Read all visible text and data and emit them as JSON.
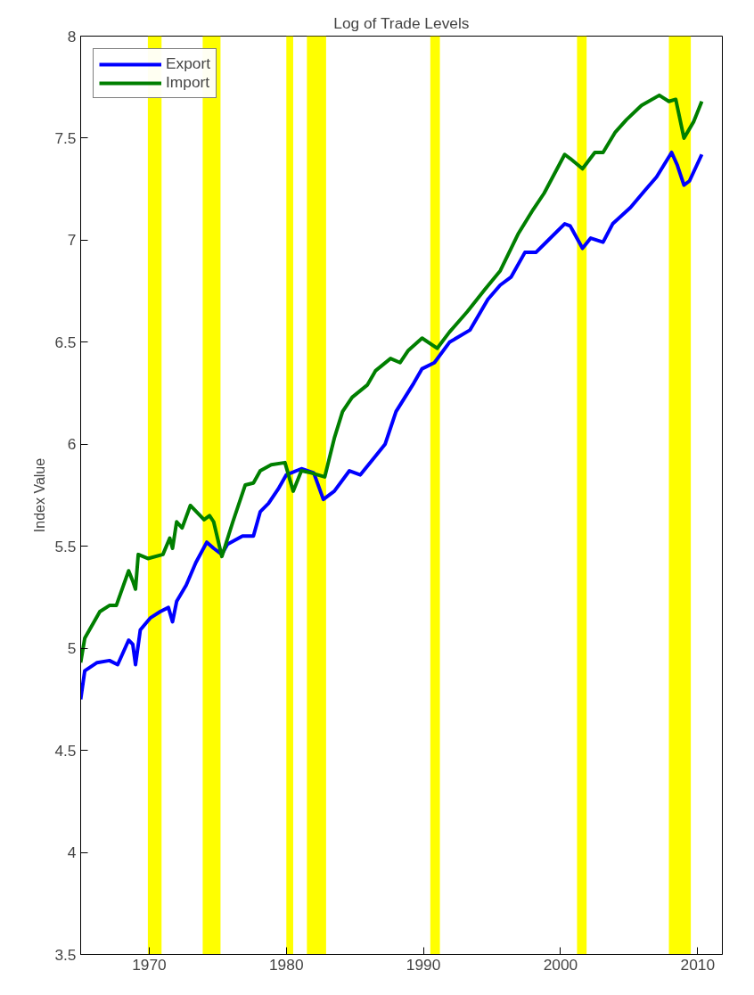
{
  "chart_data": {
    "type": "line",
    "title": "Log of Trade Levels",
    "ylabel": "Index Value",
    "xlim": [
      1965,
      2011.8
    ],
    "ylim": [
      3.5,
      8
    ],
    "xticks": [
      1970,
      1980,
      1990,
      2000,
      2010
    ],
    "yticks": [
      3.5,
      4,
      4.5,
      5,
      5.5,
      6,
      6.5,
      7,
      7.5,
      8
    ],
    "grid": false,
    "legend": "top left",
    "line_style": "solid",
    "marker": "none",
    "bands": [
      {
        "axis": "x",
        "from": 1969.9,
        "to": 1970.9,
        "color": "#ffff00"
      },
      {
        "axis": "x",
        "from": 1973.9,
        "to": 1975.2,
        "color": "#ffff00"
      },
      {
        "axis": "x",
        "from": 1980.0,
        "to": 1980.5,
        "color": "#ffff00"
      },
      {
        "axis": "x",
        "from": 1981.5,
        "to": 1982.9,
        "color": "#ffff00"
      },
      {
        "axis": "x",
        "from": 1990.5,
        "to": 1991.2,
        "color": "#ffff00"
      },
      {
        "axis": "x",
        "from": 2001.2,
        "to": 2001.9,
        "color": "#ffff00"
      },
      {
        "axis": "x",
        "from": 2007.9,
        "to": 2009.5,
        "color": "#ffff00"
      }
    ],
    "series": [
      {
        "name": "Export",
        "color": "#0000ff",
        "x": [
          1965.0,
          1965.3,
          1966.2,
          1967.1,
          1967.7,
          1968.5,
          1968.8,
          1969.0,
          1969.35,
          1970.1,
          1970.8,
          1971.4,
          1971.7,
          1972.0,
          1972.7,
          1973.4,
          1974.2,
          1974.7,
          1975.3,
          1975.7,
          1976.8,
          1977.6,
          1978.1,
          1978.7,
          1979.4,
          1980.0,
          1981.1,
          1982.0,
          1982.7,
          1983.5,
          1984.6,
          1985.4,
          1987.2,
          1988.0,
          1989.3,
          1989.9,
          1990.8,
          1991.9,
          1993.4,
          1994.7,
          1995.6,
          1996.4,
          1997.4,
          1998.2,
          1998.8,
          2000.3,
          2000.7,
          2001.6,
          2002.2,
          2003.1,
          2003.8,
          2005.1,
          2006.1,
          2007.0,
          2008.1,
          2008.5,
          2009.0,
          2009.4,
          2010.3
        ],
        "values": [
          4.75,
          4.89,
          4.93,
          4.94,
          4.92,
          5.04,
          5.02,
          4.92,
          5.09,
          5.15,
          5.18,
          5.2,
          5.13,
          5.23,
          5.31,
          5.42,
          5.52,
          5.49,
          5.46,
          5.51,
          5.55,
          5.55,
          5.67,
          5.71,
          5.78,
          5.85,
          5.88,
          5.86,
          5.73,
          5.77,
          5.87,
          5.85,
          6.0,
          6.16,
          6.3,
          6.37,
          6.4,
          6.5,
          6.56,
          6.71,
          6.78,
          6.82,
          6.94,
          6.94,
          6.98,
          7.08,
          7.07,
          6.96,
          7.01,
          6.99,
          7.08,
          7.16,
          7.24,
          7.31,
          7.43,
          7.37,
          7.27,
          7.29,
          7.42
        ]
      },
      {
        "name": "Import",
        "color": "#007f00",
        "x": [
          1965.0,
          1965.3,
          1966.4,
          1967.1,
          1967.6,
          1968.5,
          1968.8,
          1969.0,
          1969.2,
          1969.9,
          1971.0,
          1971.5,
          1971.7,
          1972.0,
          1972.4,
          1973.0,
          1974.0,
          1974.4,
          1974.7,
          1975.3,
          1976.1,
          1977.0,
          1977.6,
          1978.1,
          1978.9,
          1979.9,
          1980.5,
          1981.1,
          1981.8,
          1982.3,
          1982.8,
          1983.5,
          1984.1,
          1984.8,
          1985.9,
          1986.5,
          1987.6,
          1988.3,
          1988.9,
          1989.9,
          1991.0,
          1991.9,
          1993.2,
          1994.5,
          1995.6,
          1996.9,
          1998.0,
          1998.8,
          2000.3,
          2000.7,
          2001.6,
          2002.5,
          2003.1,
          2004.0,
          2004.8,
          2005.9,
          2007.2,
          2007.9,
          2008.4,
          2009.0,
          2009.7,
          2010.0,
          2010.3
        ],
        "values": [
          4.93,
          5.05,
          5.18,
          5.21,
          5.21,
          5.38,
          5.33,
          5.29,
          5.46,
          5.44,
          5.46,
          5.54,
          5.49,
          5.62,
          5.59,
          5.7,
          5.63,
          5.65,
          5.62,
          5.45,
          5.62,
          5.8,
          5.81,
          5.87,
          5.9,
          5.91,
          5.77,
          5.87,
          5.86,
          5.85,
          5.84,
          6.03,
          6.16,
          6.23,
          6.29,
          6.36,
          6.42,
          6.4,
          6.46,
          6.52,
          6.47,
          6.55,
          6.65,
          6.76,
          6.85,
          7.03,
          7.15,
          7.23,
          7.42,
          7.4,
          7.35,
          7.43,
          7.43,
          7.53,
          7.59,
          7.66,
          7.71,
          7.68,
          7.69,
          7.5,
          7.58,
          7.63,
          7.68
        ]
      }
    ]
  }
}
